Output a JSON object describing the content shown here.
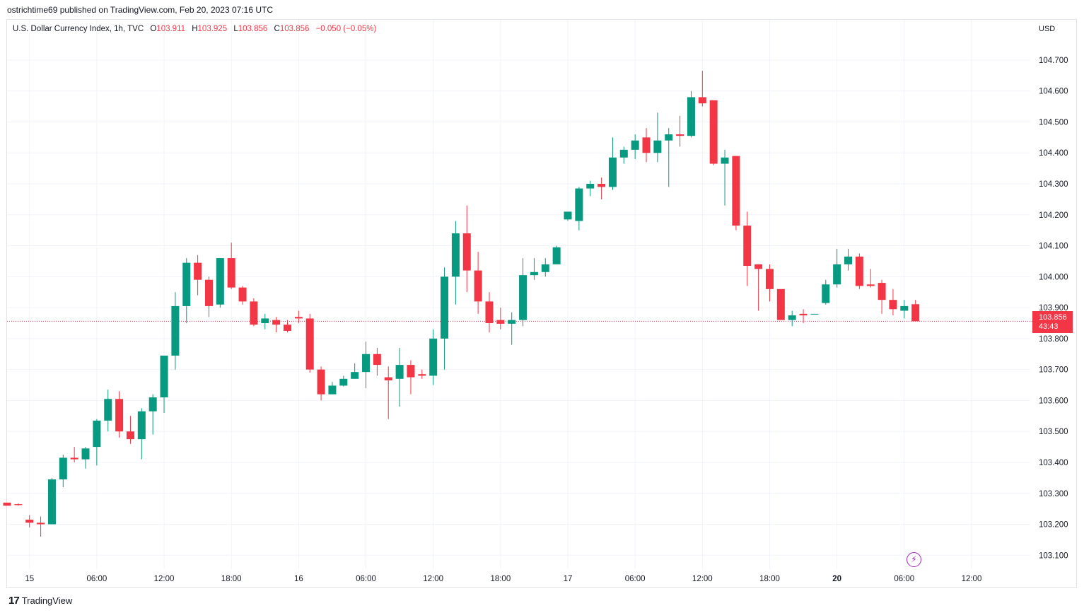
{
  "header": {
    "published": "ostrichtime69 published on TradingView.com, Feb 20, 2023 07:16 UTC"
  },
  "legend": {
    "symbol": "U.S. Dollar Currency Index, 1h, TVC",
    "open_label": "O",
    "open": "103.911",
    "high_label": "H",
    "high": "103.925",
    "low_label": "L",
    "low": "103.856",
    "close_label": "C",
    "close": "103.856",
    "change": "−0.050 (−0.05%)"
  },
  "currency": "USD",
  "price_tag": {
    "price": "103.856",
    "countdown": "43:43"
  },
  "footer": {
    "logo_mark": "17",
    "logo_text": "TradingView"
  },
  "colors": {
    "up": "#089981",
    "down": "#f23645",
    "grid": "#f0f3fa",
    "accent": "#9c27b0"
  },
  "icons": {
    "replay": "lightning-bolt-icon",
    "logo": "tradingview-logo-icon"
  },
  "chart_data": {
    "type": "candlestick",
    "symbol": "DXY",
    "interval": "1h",
    "y_ticks": [
      "103.100",
      "103.200",
      "103.300",
      "103.400",
      "103.500",
      "103.600",
      "103.700",
      "103.800",
      "103.900",
      "104.000",
      "104.100",
      "104.200",
      "104.300",
      "104.400",
      "104.500",
      "104.600",
      "104.700"
    ],
    "ylim": [
      103.055,
      104.83
    ],
    "x_ticks": [
      {
        "label": "15",
        "bar": 2
      },
      {
        "label": "06:00",
        "bar": 8
      },
      {
        "label": "12:00",
        "bar": 14
      },
      {
        "label": "18:00",
        "bar": 20
      },
      {
        "label": "16",
        "bar": 26
      },
      {
        "label": "06:00",
        "bar": 32
      },
      {
        "label": "12:00",
        "bar": 38
      },
      {
        "label": "18:00",
        "bar": 44
      },
      {
        "label": "17",
        "bar": 50
      },
      {
        "label": "06:00",
        "bar": 56
      },
      {
        "label": "12:00",
        "bar": 62
      },
      {
        "label": "18:00",
        "bar": 68
      },
      {
        "label": "20",
        "bar": 74,
        "bold": true
      },
      {
        "label": "06:00",
        "bar": 80
      },
      {
        "label": "12:00",
        "bar": 86
      }
    ],
    "last_price": 103.856,
    "candles": [
      [
        103.27,
        103.27,
        103.265,
        103.26
      ],
      [
        103.265,
        103.268,
        103.26,
        103.262
      ],
      [
        103.215,
        103.23,
        103.19,
        103.205
      ],
      [
        103.205,
        103.225,
        103.16,
        103.2
      ],
      [
        103.2,
        103.35,
        103.2,
        103.345
      ],
      [
        103.345,
        103.425,
        103.32,
        103.415
      ],
      [
        103.415,
        103.45,
        103.4,
        103.41
      ],
      [
        103.41,
        103.45,
        103.38,
        103.445
      ],
      [
        103.45,
        103.54,
        103.39,
        103.535
      ],
      [
        103.535,
        103.635,
        103.5,
        103.605
      ],
      [
        103.605,
        103.63,
        103.48,
        103.5
      ],
      [
        103.5,
        103.55,
        103.46,
        103.475
      ],
      [
        103.475,
        103.575,
        103.41,
        103.565
      ],
      [
        103.565,
        103.62,
        103.49,
        103.61
      ],
      [
        103.61,
        103.74,
        103.56,
        103.745
      ],
      [
        103.745,
        103.95,
        103.7,
        103.905
      ],
      [
        103.905,
        104.06,
        103.85,
        104.045
      ],
      [
        104.045,
        104.07,
        103.94,
        103.99
      ],
      [
        103.99,
        104.0,
        103.87,
        103.905
      ],
      [
        103.91,
        104.06,
        103.9,
        104.06
      ],
      [
        104.06,
        104.11,
        103.96,
        103.965
      ],
      [
        103.965,
        103.97,
        103.91,
        103.92
      ],
      [
        103.92,
        103.93,
        103.84,
        103.845
      ],
      [
        103.85,
        103.88,
        103.83,
        103.865
      ],
      [
        103.86,
        103.87,
        103.82,
        103.845
      ],
      [
        103.845,
        103.86,
        103.82,
        103.825
      ],
      [
        103.87,
        103.89,
        103.85,
        103.865
      ],
      [
        103.865,
        103.88,
        103.69,
        103.7
      ],
      [
        103.7,
        103.71,
        103.6,
        103.62
      ],
      [
        103.62,
        103.66,
        103.62,
        103.648
      ],
      [
        103.648,
        103.68,
        103.645,
        103.67
      ],
      [
        103.67,
        103.72,
        103.67,
        103.692
      ],
      [
        103.692,
        103.79,
        103.64,
        103.75
      ],
      [
        103.75,
        103.77,
        103.68,
        103.715
      ],
      [
        103.675,
        103.71,
        103.54,
        103.665
      ],
      [
        103.67,
        103.77,
        103.58,
        103.715
      ],
      [
        103.715,
        103.73,
        103.62,
        103.675
      ],
      [
        103.685,
        103.7,
        103.67,
        103.68
      ],
      [
        103.68,
        103.83,
        103.65,
        103.8
      ],
      [
        103.8,
        104.03,
        103.7,
        104.0
      ],
      [
        104.0,
        104.18,
        103.91,
        104.14
      ],
      [
        104.14,
        104.23,
        103.95,
        104.02
      ],
      [
        104.02,
        104.08,
        103.88,
        103.92
      ],
      [
        103.92,
        103.95,
        103.82,
        103.85
      ],
      [
        103.86,
        103.9,
        103.83,
        103.848
      ],
      [
        103.848,
        103.885,
        103.78,
        103.86
      ],
      [
        103.86,
        104.06,
        103.84,
        104.005
      ],
      [
        104.005,
        104.06,
        103.99,
        104.015
      ],
      [
        104.015,
        104.06,
        104.0,
        104.04
      ],
      [
        104.04,
        104.1,
        104.04,
        104.095
      ],
      [
        104.185,
        104.21,
        104.18,
        104.21
      ],
      [
        104.18,
        104.29,
        104.15,
        104.285
      ],
      [
        104.285,
        104.31,
        104.26,
        104.3
      ],
      [
        104.3,
        104.32,
        104.25,
        104.29
      ],
      [
        104.29,
        104.45,
        104.28,
        104.385
      ],
      [
        104.385,
        104.42,
        104.365,
        104.41
      ],
      [
        104.41,
        104.46,
        104.38,
        104.44
      ],
      [
        104.45,
        104.48,
        104.37,
        104.4
      ],
      [
        104.4,
        104.53,
        104.37,
        104.44
      ],
      [
        104.44,
        104.48,
        104.29,
        104.46
      ],
      [
        104.46,
        104.52,
        104.42,
        104.455
      ],
      [
        104.455,
        104.6,
        104.45,
        104.58
      ],
      [
        104.58,
        104.665,
        104.55,
        104.56
      ],
      [
        104.57,
        104.57,
        104.36,
        104.365
      ],
      [
        104.365,
        104.41,
        104.23,
        104.385
      ],
      [
        104.39,
        104.39,
        104.15,
        104.165
      ],
      [
        104.165,
        104.21,
        103.97,
        104.035
      ],
      [
        104.04,
        104.04,
        103.89,
        104.025
      ],
      [
        104.025,
        104.04,
        103.92,
        103.96
      ],
      [
        103.96,
        103.96,
        103.86,
        103.86
      ],
      [
        103.86,
        103.89,
        103.84,
        103.875
      ],
      [
        103.88,
        103.895,
        103.85,
        103.875
      ],
      [
        103.88,
        103.88,
        103.878,
        103.88
      ],
      [
        103.915,
        103.99,
        103.91,
        103.975
      ],
      [
        103.975,
        104.09,
        103.965,
        104.04
      ],
      [
        104.04,
        104.09,
        104.02,
        104.065
      ],
      [
        104.065,
        104.075,
        103.96,
        103.97
      ],
      [
        103.975,
        104.025,
        103.965,
        103.97
      ],
      [
        103.98,
        103.99,
        103.88,
        103.925
      ],
      [
        103.925,
        103.96,
        103.875,
        103.895
      ],
      [
        103.89,
        103.925,
        103.865,
        103.905
      ],
      [
        103.911,
        103.925,
        103.856,
        103.856
      ]
    ]
  }
}
